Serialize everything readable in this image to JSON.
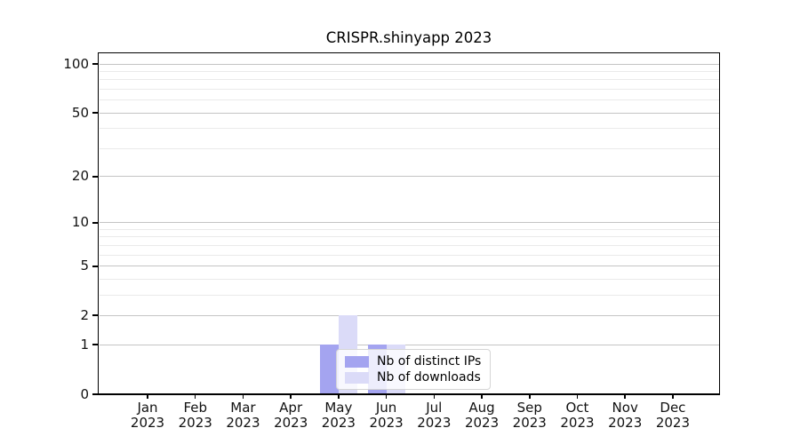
{
  "chart_data": {
    "type": "bar",
    "title": "CRISPR.shinyapp 2023",
    "categories": [
      "Jan 2023",
      "Feb 2023",
      "Mar 2023",
      "Apr 2023",
      "May 2023",
      "Jun 2023",
      "Jul 2023",
      "Aug 2023",
      "Sep 2023",
      "Oct 2023",
      "Nov 2023",
      "Dec 2023"
    ],
    "series": [
      {
        "name": "Nb of distinct IPs",
        "color": "#a4a4f0",
        "values": [
          0,
          0,
          0,
          0,
          1,
          1,
          0,
          0,
          0,
          0,
          0,
          0
        ]
      },
      {
        "name": "Nb of downloads",
        "color": "#dbdbf8",
        "values": [
          0,
          0,
          0,
          0,
          2,
          1,
          0,
          0,
          0,
          0,
          0,
          0
        ]
      }
    ],
    "xlabel": "",
    "ylabel": "",
    "yscale": "log1p",
    "ylim": [
      0,
      118
    ],
    "yticks": [
      0,
      1,
      2,
      5,
      10,
      20,
      50,
      100
    ],
    "yticks_minor": [
      3,
      4,
      6,
      7,
      8,
      9,
      30,
      40,
      60,
      70,
      80,
      90
    ],
    "grid": true,
    "legend": {
      "position": "lower-center-inside",
      "labels": [
        "Nb of distinct IPs",
        "Nb of downloads"
      ]
    },
    "colors": {
      "major_grid": "#c4c4c4",
      "minor_grid": "#eaeaea",
      "spine": "#000000",
      "text": "#111111",
      "background": "#ffffff"
    }
  }
}
